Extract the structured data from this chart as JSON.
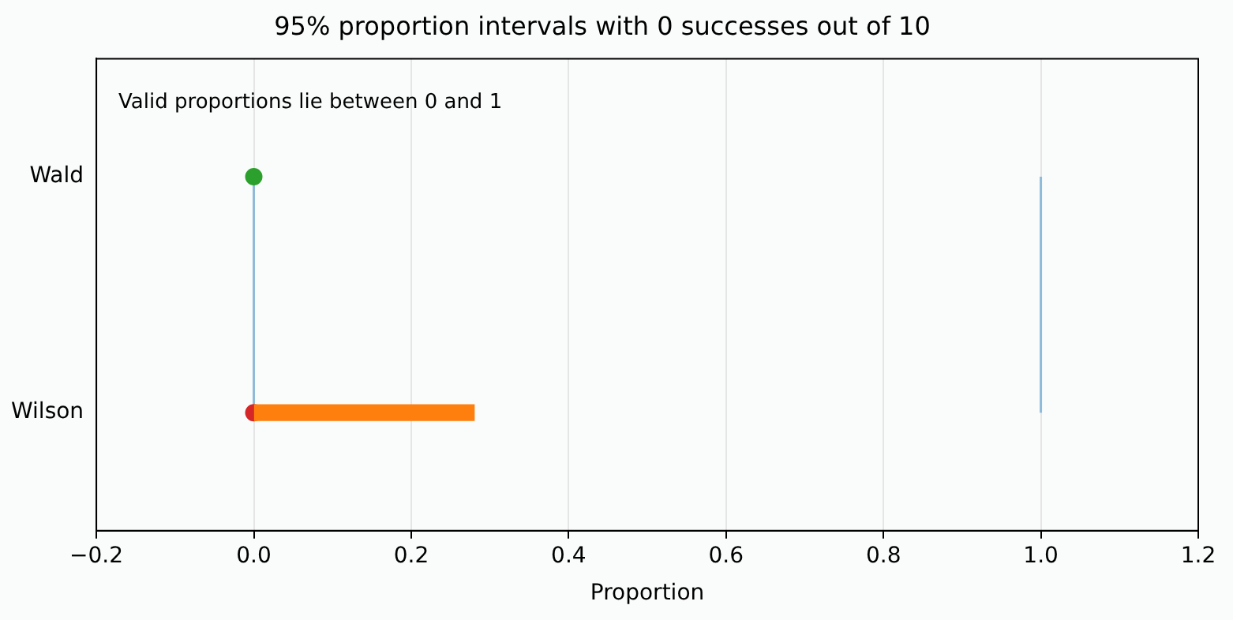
{
  "chart_data": {
    "type": "bar",
    "orientation": "horizontal",
    "title": "95% proportion intervals with 0 successes out of 10",
    "xlabel": "Proportion",
    "categories": [
      "Wald",
      "Wilson"
    ],
    "series": [
      {
        "type": "bar",
        "color": "#ff7f0e",
        "values": [
          null,
          0.28
        ]
      },
      {
        "type": "scatter",
        "colors": [
          "#2ca02c",
          "#d62728"
        ],
        "values": [
          0,
          0
        ]
      }
    ],
    "xlim": [
      -0.2,
      1.2
    ],
    "xticks": [
      {
        "value": -0.2,
        "label": "−0.2"
      },
      {
        "value": 0,
        "label": "0.0"
      },
      {
        "value": 0.2,
        "label": "0.2"
      },
      {
        "value": 0.4,
        "label": "0.4"
      },
      {
        "value": 0.6,
        "label": "0.6"
      },
      {
        "value": 0.8,
        "label": "0.8"
      },
      {
        "value": 1,
        "label": "1.0"
      },
      {
        "value": 1.2,
        "label": "1.2"
      }
    ],
    "grid": "x",
    "marker": "circle",
    "ref_lines": [
      {
        "axis": "x",
        "value": 0,
        "color": "#8fbbd9"
      },
      {
        "axis": "x",
        "value": 1,
        "color": "#8fbbd9"
      }
    ],
    "annotations": [
      "Valid proportions lie between 0 and 1"
    ]
  }
}
